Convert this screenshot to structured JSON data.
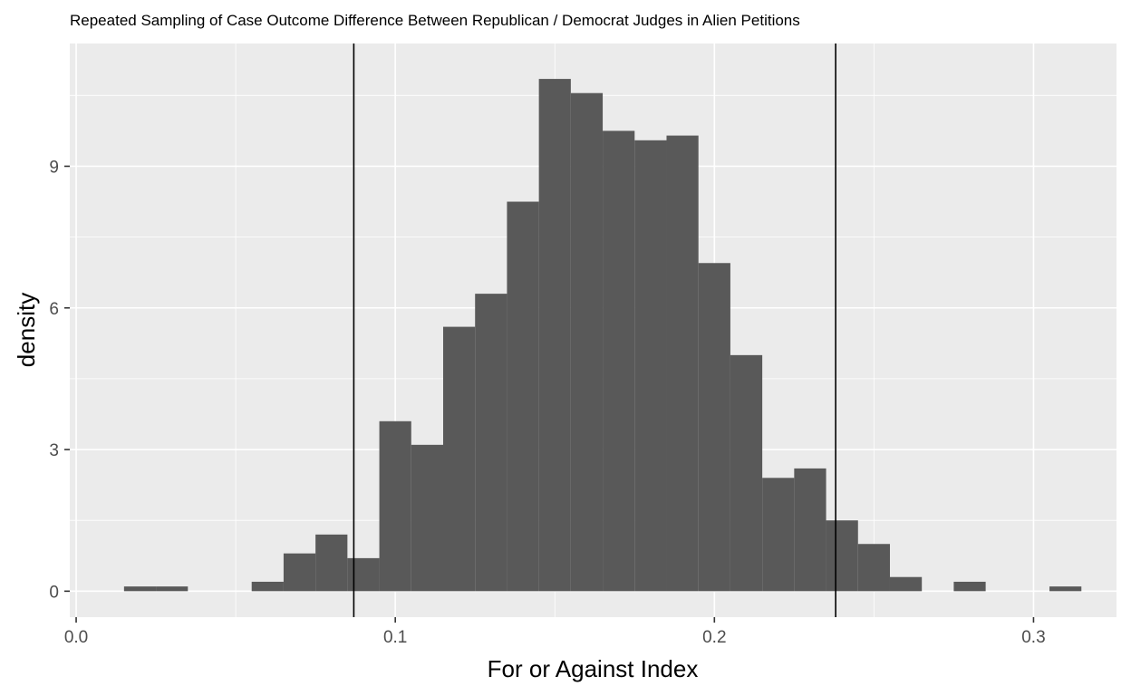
{
  "chart_data": {
    "type": "bar",
    "title": "Repeated Sampling of Case Outcome Difference Between Republican / Democrat Judges in Alien Petitions",
    "xlabel": "For or Against Index",
    "ylabel": "density",
    "xlim": [
      -0.002,
      0.326
    ],
    "ylim": [
      -0.55,
      11.6
    ],
    "xticks": [
      0.0,
      0.1,
      0.2,
      0.3
    ],
    "xtick_labels": [
      "0.0",
      "0.1",
      "0.2",
      "0.3"
    ],
    "yticks": [
      0,
      3,
      6,
      9
    ],
    "ytick_labels": [
      "0",
      "3",
      "6",
      "9"
    ],
    "grid": true,
    "legend": "none",
    "colors": {
      "panel_background": "#ebebeb",
      "grid": "#ffffff",
      "bars": "#595959",
      "vlines": "#000000",
      "tick_text": "#4d4d4d"
    },
    "bins": {
      "start": 0.015,
      "width": 0.01,
      "densities": [
        0.1,
        0.1,
        0,
        0,
        0.2,
        0.8,
        1.2,
        0.7,
        3.6,
        3.1,
        5.6,
        6.3,
        8.25,
        10.85,
        10.55,
        9.75,
        9.55,
        9.65,
        6.95,
        5.0,
        2.4,
        2.6,
        1.5,
        1.0,
        0.3,
        0,
        0.2,
        0,
        0,
        0.1
      ]
    },
    "vlines": [
      0.087,
      0.238
    ]
  }
}
